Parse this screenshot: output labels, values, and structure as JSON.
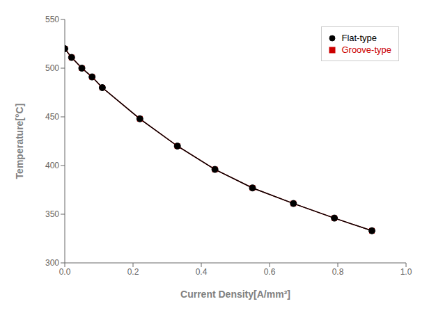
{
  "chart_data": {
    "type": "line",
    "xlabel": "Current Density[A/mm²]",
    "ylabel": "Temperature[°C]",
    "x": [
      0.0,
      0.02,
      0.05,
      0.08,
      0.11,
      0.22,
      0.33,
      0.44,
      0.55,
      0.67,
      0.79,
      0.9
    ],
    "series": [
      {
        "name": "Groove-type",
        "color": "#cc0000",
        "marker": "square",
        "values": [
          520,
          511,
          500,
          491,
          480,
          448,
          420,
          396,
          377,
          361,
          346,
          333
        ]
      },
      {
        "name": "Flat-type",
        "color": "#000000",
        "marker": "circle",
        "values": [
          520,
          511,
          500,
          491,
          480,
          448,
          420,
          396,
          377,
          361,
          346,
          333
        ]
      }
    ],
    "xlim": [
      0.0,
      1.0
    ],
    "ylim": [
      300,
      550
    ],
    "xticks": [
      {
        "value": 0.0,
        "label": "0.0"
      },
      0.2,
      0.4,
      0.6,
      0.8,
      {
        "value": 1.0,
        "label": "1.0"
      }
    ],
    "yticks": [
      300,
      350,
      400,
      450,
      500,
      550
    ],
    "grid": false,
    "legend": "upper right"
  }
}
